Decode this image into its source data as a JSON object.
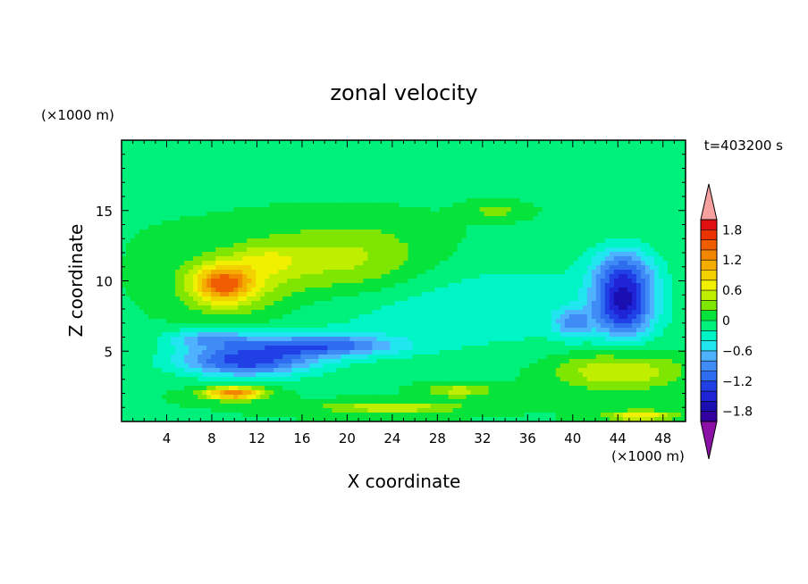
{
  "chart_data": {
    "type": "heatmap",
    "title": "zonal velocity",
    "xlabel": "X coordinate",
    "ylabel": "Z coordinate",
    "x_unit": "(×1000 m)",
    "y_unit": "(×1000 m)",
    "time_label": "t=403200 s",
    "xlim": [
      0,
      50
    ],
    "ylim": [
      0,
      20
    ],
    "x_ticks": [
      4,
      8,
      12,
      16,
      20,
      24,
      28,
      32,
      36,
      40,
      44,
      48
    ],
    "y_ticks": [
      5,
      10,
      15
    ],
    "colorbar": {
      "levels": [
        -2.0,
        -1.8,
        -1.6,
        -1.4,
        -1.2,
        -1.0,
        -0.8,
        -0.6,
        -0.4,
        -0.2,
        0,
        0.2,
        0.4,
        0.6,
        0.8,
        1.0,
        1.2,
        1.4,
        1.6,
        1.8,
        2.0
      ],
      "labels": [
        "1.8",
        "1.2",
        "0.6",
        "0",
        "−0.6",
        "−1.2",
        "−1.8"
      ],
      "colors": [
        "#3300a0",
        "#1a0fb0",
        "#1f24d6",
        "#2040e6",
        "#2e6cf0",
        "#3f8cf6",
        "#4fb2ff",
        "#21e6ef",
        "#00f5c6",
        "#00f07c",
        "#06e33a",
        "#7ee600",
        "#bfee00",
        "#f0f000",
        "#f3d000",
        "#f5ac00",
        "#f28600",
        "#f05c00",
        "#ec3200",
        "#e01010"
      ],
      "over_color": "#f6a0a0",
      "under_color": "#8a10a6"
    },
    "field_features": [
      {
        "x": 9.0,
        "z": 9.8,
        "u": 1.2,
        "sx": 2.6,
        "sz": 1.3
      },
      {
        "x": 10.0,
        "z": 9.5,
        "u": 0.45,
        "sx": 5.5,
        "sz": 2.4
      },
      {
        "x": 20.0,
        "z": 11.3,
        "u": 0.55,
        "sx": 7.5,
        "sz": 2.6
      },
      {
        "x": 13.0,
        "z": 11.5,
        "u": 0.35,
        "sx": 3.0,
        "sz": 1.2
      },
      {
        "x": 11.0,
        "z": 4.3,
        "u": -1.3,
        "sx": 6.0,
        "sz": 1.1
      },
      {
        "x": 18.0,
        "z": 5.4,
        "u": -1.0,
        "sx": 6.5,
        "sz": 0.8
      },
      {
        "x": 8.0,
        "z": 5.9,
        "u": -0.7,
        "sx": 4.0,
        "sz": 0.7
      },
      {
        "x": 44.5,
        "z": 8.2,
        "u": -1.4,
        "sx": 2.6,
        "sz": 2.2
      },
      {
        "x": 44.5,
        "z": 10.8,
        "u": -0.8,
        "sx": 2.8,
        "sz": 1.8
      },
      {
        "x": 40.0,
        "z": 7.0,
        "u": -0.7,
        "sx": 1.6,
        "sz": 1.0
      },
      {
        "x": 30.0,
        "z": 8.2,
        "u": -0.35,
        "sx": 18.0,
        "sz": 3.5
      },
      {
        "x": 44.0,
        "z": 3.6,
        "u": 0.65,
        "sx": 5.5,
        "sz": 1.3
      },
      {
        "x": 10.0,
        "z": 2.0,
        "u": 1.4,
        "sx": 2.6,
        "sz": 0.45
      },
      {
        "x": 24.0,
        "z": 1.0,
        "u": 0.6,
        "sx": 6.0,
        "sz": 0.4
      },
      {
        "x": 30.0,
        "z": 2.2,
        "u": 0.5,
        "sx": 3.0,
        "sz": 0.5
      },
      {
        "x": 46.0,
        "z": 0.4,
        "u": 0.8,
        "sx": 3.0,
        "sz": 0.35
      },
      {
        "x": 25.0,
        "z": 17.0,
        "u": -0.05,
        "sx": 20.0,
        "sz": 2.0
      },
      {
        "x": 33.0,
        "z": 15.0,
        "u": 0.3,
        "sx": 2.5,
        "sz": 0.6
      }
    ]
  }
}
